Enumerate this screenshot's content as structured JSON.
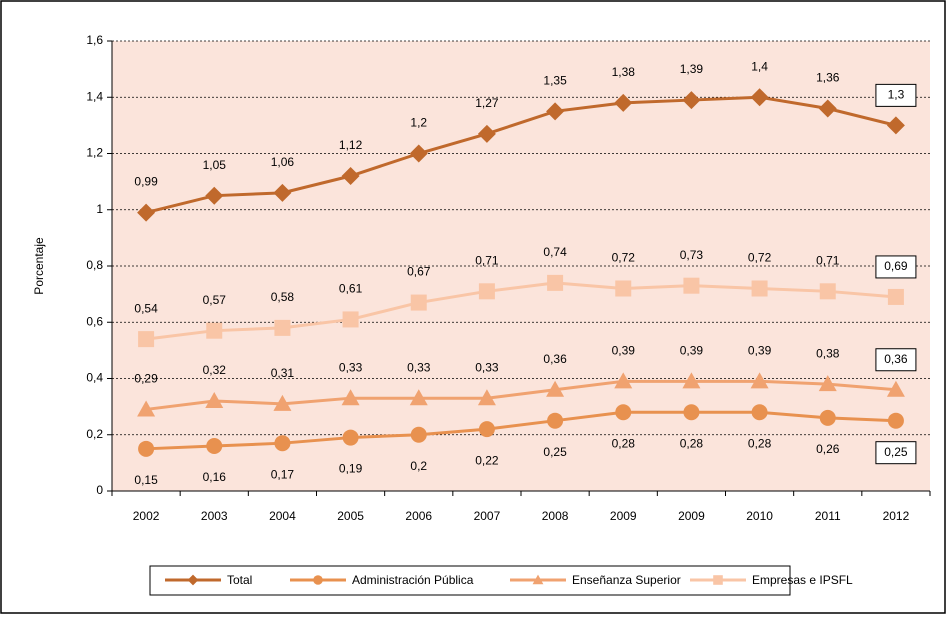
{
  "chart_data": {
    "type": "line",
    "y_label": "Porcentaje",
    "categories": [
      "2002",
      "2003",
      "2004",
      "2005",
      "2006",
      "2007",
      "2008",
      "2009",
      "2009",
      "2010",
      "2011",
      "2012"
    ],
    "ylim": [
      0,
      1.6
    ],
    "yticks": [
      0,
      {
        "value": 0.2,
        "label": "0,2"
      },
      {
        "value": 0.4,
        "label": "0,4"
      },
      {
        "value": 0.6,
        "label": "0,6"
      },
      {
        "value": 0.8,
        "label": "0,8"
      },
      1,
      {
        "value": 1.2,
        "label": "1,2"
      },
      {
        "value": 1.4,
        "label": "1,4"
      },
      {
        "value": 1.6,
        "label": "1,6"
      }
    ],
    "grid": true,
    "legend": "bottom",
    "series": [
      {
        "name": "Total",
        "color": "#c0692c",
        "marker": "diamond",
        "values": [
          0.99,
          1.05,
          1.06,
          1.12,
          1.2,
          1.27,
          1.35,
          1.38,
          1.39,
          1.4,
          1.36,
          1.3
        ],
        "value_labels": [
          "0,99",
          "1,05",
          "1,06",
          "1,12",
          "1,2",
          "1,27",
          "1,35",
          "1,38",
          "1,39",
          "1,4",
          "1,36",
          "1,3"
        ]
      },
      {
        "name": "Administración Pública",
        "color": "#e8914f",
        "marker": "circle",
        "values": [
          0.15,
          0.16,
          0.17,
          0.19,
          0.2,
          0.22,
          0.25,
          0.28,
          0.28,
          0.28,
          0.26,
          0.25
        ],
        "value_labels": [
          "0,15",
          "0,16",
          "0,17",
          "0,19",
          "0,2",
          "0,22",
          "0,25",
          "0,28",
          "0,28",
          "0,28",
          "0,26",
          "0,25"
        ]
      },
      {
        "name": "Enseñanza Superior",
        "color": "#f0a270",
        "marker": "triangle",
        "values": [
          0.29,
          0.32,
          0.31,
          0.33,
          0.33,
          0.33,
          0.36,
          0.39,
          0.39,
          0.39,
          0.38,
          0.36
        ],
        "value_labels": [
          "0,29",
          "0,32",
          "0,31",
          "0,33",
          "0,33",
          "0,33",
          "0,36",
          "0,39",
          "0,39",
          "0,39",
          "0,38",
          "0,36"
        ]
      },
      {
        "name": "Empresas e IPSFL",
        "color": "#f9c5a6",
        "marker": "square",
        "values": [
          0.54,
          0.57,
          0.58,
          0.61,
          0.67,
          0.71,
          0.74,
          0.72,
          0.73,
          0.72,
          0.71,
          0.69
        ],
        "value_labels": [
          "0,54",
          "0,57",
          "0,58",
          "0,61",
          "0,67",
          "0,71",
          "0,74",
          "0,72",
          "0,73",
          "0,72",
          "0,71",
          "0,69"
        ]
      }
    ]
  }
}
